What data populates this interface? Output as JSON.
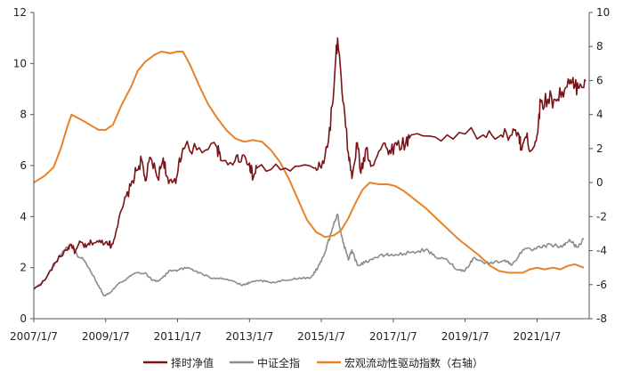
{
  "chart_data": {
    "type": "line",
    "x_tick_labels": [
      "2007/1/7",
      "2009/1/7",
      "2011/1/7",
      "2013/1/7",
      "2015/1/7",
      "2017/1/7",
      "2019/1/7",
      "2021/1/7"
    ],
    "y_left": {
      "ticks": [
        0,
        2,
        4,
        6,
        8,
        10,
        12
      ],
      "ylim": [
        0,
        12
      ]
    },
    "y_right": {
      "ticks": [
        -8,
        -6,
        -4,
        -2,
        0,
        2,
        4,
        6,
        8,
        10
      ],
      "ylim": [
        -8,
        10
      ]
    },
    "grid": false,
    "legend_position": "bottom",
    "series": [
      {
        "name": "择时净值",
        "color": "#7b1316",
        "axis": "left",
        "points": [
          [
            2007.0,
            1.15
          ],
          [
            2007.3,
            1.5
          ],
          [
            2007.6,
            2.2
          ],
          [
            2007.9,
            2.7
          ],
          [
            2008.05,
            2.9
          ],
          [
            2008.15,
            2.6
          ],
          [
            2008.3,
            3.0
          ],
          [
            2008.45,
            2.8
          ],
          [
            2008.6,
            3.0
          ],
          [
            2008.8,
            3.0
          ],
          [
            2009.0,
            3.0
          ],
          [
            2009.1,
            3.0
          ],
          [
            2009.15,
            2.8
          ],
          [
            2009.3,
            3.5
          ],
          [
            2009.5,
            4.5
          ],
          [
            2009.7,
            5.2
          ],
          [
            2009.85,
            5.8
          ],
          [
            2010.0,
            6.2
          ],
          [
            2010.1,
            5.4
          ],
          [
            2010.25,
            6.3
          ],
          [
            2010.45,
            5.5
          ],
          [
            2010.6,
            6.3
          ],
          [
            2010.75,
            5.3
          ],
          [
            2010.95,
            5.3
          ],
          [
            2011.05,
            6.3
          ],
          [
            2011.2,
            6.7
          ],
          [
            2011.6,
            6.7
          ],
          [
            2012.1,
            6.7
          ],
          [
            2012.2,
            6.2
          ],
          [
            2012.6,
            6.2
          ],
          [
            2012.8,
            6.4
          ],
          [
            2013.0,
            6.1
          ],
          [
            2013.1,
            5.5
          ],
          [
            2013.2,
            5.9
          ],
          [
            2014.0,
            5.9
          ],
          [
            2014.8,
            5.9
          ],
          [
            2015.0,
            5.9
          ],
          [
            2015.2,
            7.0
          ],
          [
            2015.35,
            9.0
          ],
          [
            2015.45,
            11.0
          ],
          [
            2015.6,
            8.5
          ],
          [
            2015.75,
            6.5
          ],
          [
            2015.85,
            5.5
          ],
          [
            2016.0,
            6.9
          ],
          [
            2016.1,
            5.7
          ],
          [
            2016.25,
            6.7
          ],
          [
            2016.4,
            6.0
          ],
          [
            2016.7,
            6.8
          ],
          [
            2016.9,
            6.6
          ],
          [
            2017.1,
            6.8
          ],
          [
            2017.35,
            6.9
          ],
          [
            2017.5,
            7.2
          ],
          [
            2018.5,
            7.2
          ],
          [
            2019.5,
            7.2
          ],
          [
            2020.0,
            7.2
          ],
          [
            2020.3,
            7.2
          ],
          [
            2020.5,
            7.2
          ],
          [
            2020.55,
            6.7
          ],
          [
            2020.7,
            7.1
          ],
          [
            2020.85,
            6.6
          ],
          [
            2021.0,
            7.2
          ],
          [
            2021.1,
            8.5
          ],
          [
            2021.3,
            8.6
          ],
          [
            2021.5,
            8.6
          ],
          [
            2021.7,
            8.9
          ],
          [
            2021.9,
            9.2
          ],
          [
            2022.05,
            9.1
          ],
          [
            2022.2,
            9.2
          ],
          [
            2022.35,
            9.3
          ]
        ]
      },
      {
        "name": "中证全指",
        "color": "#8c8c8c",
        "axis": "left",
        "points": [
          [
            2007.0,
            1.15
          ],
          [
            2007.3,
            1.5
          ],
          [
            2007.6,
            2.2
          ],
          [
            2007.9,
            2.8
          ],
          [
            2008.05,
            2.9
          ],
          [
            2008.2,
            2.5
          ],
          [
            2008.4,
            2.3
          ],
          [
            2008.6,
            1.8
          ],
          [
            2008.8,
            1.3
          ],
          [
            2008.95,
            0.9
          ],
          [
            2009.1,
            1.0
          ],
          [
            2009.3,
            1.3
          ],
          [
            2009.6,
            1.6
          ],
          [
            2009.85,
            1.8
          ],
          [
            2010.1,
            1.8
          ],
          [
            2010.3,
            1.5
          ],
          [
            2010.5,
            1.5
          ],
          [
            2010.8,
            1.9
          ],
          [
            2011.0,
            1.9
          ],
          [
            2011.3,
            2.0
          ],
          [
            2011.6,
            1.8
          ],
          [
            2011.9,
            1.6
          ],
          [
            2012.2,
            1.6
          ],
          [
            2012.5,
            1.5
          ],
          [
            2012.8,
            1.3
          ],
          [
            2013.0,
            1.4
          ],
          [
            2013.3,
            1.5
          ],
          [
            2013.6,
            1.4
          ],
          [
            2014.0,
            1.5
          ],
          [
            2014.4,
            1.6
          ],
          [
            2014.7,
            1.6
          ],
          [
            2014.9,
            2.0
          ],
          [
            2015.1,
            2.6
          ],
          [
            2015.3,
            3.5
          ],
          [
            2015.45,
            4.1
          ],
          [
            2015.6,
            3.0
          ],
          [
            2015.75,
            2.3
          ],
          [
            2015.85,
            2.7
          ],
          [
            2016.0,
            2.1
          ],
          [
            2016.2,
            2.2
          ],
          [
            2016.5,
            2.4
          ],
          [
            2016.8,
            2.5
          ],
          [
            2017.1,
            2.5
          ],
          [
            2017.5,
            2.6
          ],
          [
            2017.9,
            2.7
          ],
          [
            2018.2,
            2.4
          ],
          [
            2018.5,
            2.3
          ],
          [
            2018.8,
            1.9
          ],
          [
            2019.0,
            1.9
          ],
          [
            2019.25,
            2.4
          ],
          [
            2019.5,
            2.2
          ],
          [
            2019.8,
            2.2
          ],
          [
            2020.1,
            2.3
          ],
          [
            2020.3,
            2.1
          ],
          [
            2020.6,
            2.7
          ],
          [
            2020.9,
            2.7
          ],
          [
            2021.1,
            2.8
          ],
          [
            2021.4,
            2.9
          ],
          [
            2021.7,
            2.8
          ],
          [
            2021.9,
            3.1
          ],
          [
            2022.1,
            2.8
          ],
          [
            2022.3,
            3.1
          ]
        ]
      },
      {
        "name": "宏观流动性驱动指数（右轴）",
        "color": "#e8822a",
        "axis": "right",
        "points": [
          [
            2007.0,
            0.0
          ],
          [
            2007.3,
            0.4
          ],
          [
            2007.55,
            0.9
          ],
          [
            2007.75,
            2.0
          ],
          [
            2007.95,
            3.4
          ],
          [
            2008.05,
            4.0
          ],
          [
            2008.4,
            3.6
          ],
          [
            2008.8,
            3.1
          ],
          [
            2009.0,
            3.1
          ],
          [
            2009.2,
            3.4
          ],
          [
            2009.45,
            4.6
          ],
          [
            2009.7,
            5.6
          ],
          [
            2009.9,
            6.6
          ],
          [
            2010.1,
            7.1
          ],
          [
            2010.35,
            7.5
          ],
          [
            2010.55,
            7.7
          ],
          [
            2010.8,
            7.6
          ],
          [
            2011.0,
            7.7
          ],
          [
            2011.15,
            7.7
          ],
          [
            2011.35,
            6.9
          ],
          [
            2011.6,
            5.7
          ],
          [
            2011.85,
            4.6
          ],
          [
            2012.1,
            3.8
          ],
          [
            2012.35,
            3.1
          ],
          [
            2012.6,
            2.6
          ],
          [
            2012.85,
            2.4
          ],
          [
            2013.1,
            2.5
          ],
          [
            2013.35,
            2.4
          ],
          [
            2013.6,
            1.9
          ],
          [
            2013.85,
            1.2
          ],
          [
            2014.1,
            0.2
          ],
          [
            2014.35,
            -1.0
          ],
          [
            2014.6,
            -2.2
          ],
          [
            2014.85,
            -2.9
          ],
          [
            2015.1,
            -3.2
          ],
          [
            2015.35,
            -3.1
          ],
          [
            2015.55,
            -2.8
          ],
          [
            2015.75,
            -2.1
          ],
          [
            2015.95,
            -1.2
          ],
          [
            2016.15,
            -0.4
          ],
          [
            2016.35,
            0.0
          ],
          [
            2016.6,
            -0.1
          ],
          [
            2016.85,
            -0.1
          ],
          [
            2017.05,
            -0.2
          ],
          [
            2017.3,
            -0.5
          ],
          [
            2017.6,
            -1.0
          ],
          [
            2017.9,
            -1.5
          ],
          [
            2018.2,
            -2.1
          ],
          [
            2018.5,
            -2.7
          ],
          [
            2018.8,
            -3.3
          ],
          [
            2019.1,
            -3.8
          ],
          [
            2019.4,
            -4.3
          ],
          [
            2019.7,
            -4.9
          ],
          [
            2019.95,
            -5.2
          ],
          [
            2020.2,
            -5.3
          ],
          [
            2020.45,
            -5.3
          ],
          [
            2020.6,
            -5.3
          ],
          [
            2020.8,
            -5.1
          ],
          [
            2021.0,
            -5.0
          ],
          [
            2021.2,
            -5.1
          ],
          [
            2021.45,
            -5.0
          ],
          [
            2021.65,
            -5.1
          ],
          [
            2021.85,
            -4.9
          ],
          [
            2022.05,
            -4.8
          ],
          [
            2022.3,
            -5.0
          ]
        ]
      }
    ]
  }
}
